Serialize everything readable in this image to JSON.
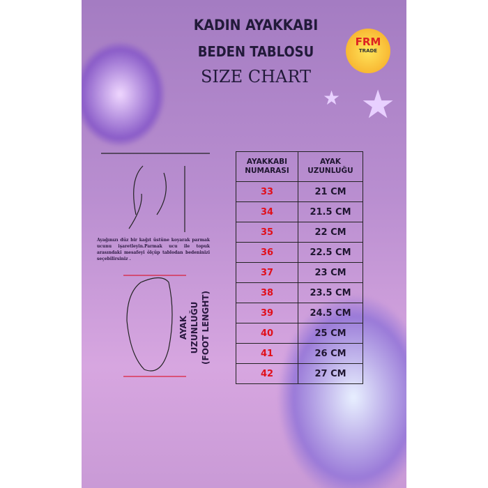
{
  "title": {
    "line1": "KADIN AYAKKABI",
    "line2": "BEDEN TABLOSU",
    "line3": "SIZE CHART"
  },
  "logo": {
    "brand": "FRM",
    "sub": "TRADE"
  },
  "instructions": "Ayağınızı düz bir kağıt üstüne koyarak parmak ucunu işaretleyin.Parmak ucu ile topuk arasındaki mesafeyi ölçüp tablodan bedeninizi seçebilirsiniz .",
  "foot_label": {
    "line1": "AYAK UZUNLUĞU",
    "line2": "(FOOT LENGHT)"
  },
  "table": {
    "headers": [
      "AYAKKABI NUMARASI",
      "AYAK UZUNLUĞU"
    ],
    "rows": [
      [
        "33",
        "21 CM"
      ],
      [
        "34",
        "21.5 CM"
      ],
      [
        "35",
        "22 CM"
      ],
      [
        "36",
        "22.5 CM"
      ],
      [
        "37",
        "23 CM"
      ],
      [
        "38",
        "23.5 CM"
      ],
      [
        "39",
        "24.5 CM"
      ],
      [
        "40",
        "25 CM"
      ],
      [
        "41",
        "26 CM"
      ],
      [
        "42",
        "27 CM"
      ]
    ]
  },
  "colors": {
    "size": "#e0101a",
    "background": "#b98ed0"
  }
}
